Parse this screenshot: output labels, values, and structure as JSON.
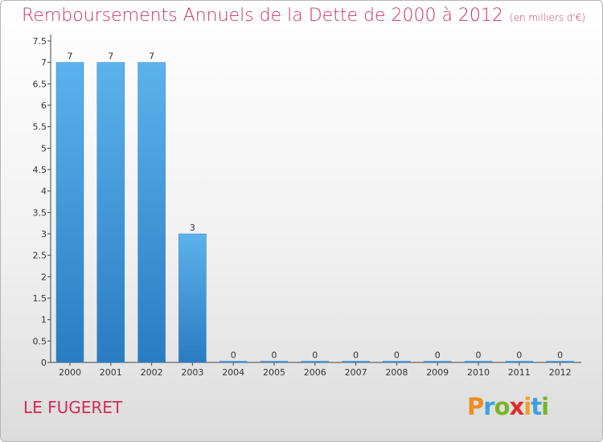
{
  "title": "Remboursements Annuels de la Dette de 2000 à 2012",
  "unit": "(en milliers d'€)",
  "commune": "LE FUGERET",
  "logo": {
    "letters": [
      "P",
      "r",
      "o",
      "x",
      "i",
      "t",
      "i"
    ],
    "colors": [
      "#f08c1e",
      "#39a0dc",
      "#78b428",
      "#e02a2a",
      "#f0a020",
      "#39a0dc",
      "#78b428"
    ]
  },
  "chart_data": {
    "type": "bar",
    "categories": [
      "2000",
      "2001",
      "2002",
      "2003",
      "2004",
      "2005",
      "2006",
      "2007",
      "2008",
      "2009",
      "2010",
      "2011",
      "2012"
    ],
    "values": [
      7,
      7,
      7,
      3,
      0,
      0,
      0,
      0,
      0,
      0,
      0,
      0,
      0
    ],
    "data_labels": [
      "7",
      "7",
      "7",
      "3",
      "0",
      "0",
      "0",
      "0",
      "0",
      "0",
      "0",
      "0",
      "0"
    ],
    "yticks": [
      "0",
      "0.5",
      "1",
      "1.5",
      "2",
      "2.5",
      "3",
      "3.5",
      "4",
      "4.5",
      "5",
      "5.5",
      "6",
      "6.5",
      "7",
      "7.5"
    ],
    "ylim": [
      0,
      7.5
    ],
    "grid": false,
    "bar_color": "#4a9de0"
  }
}
